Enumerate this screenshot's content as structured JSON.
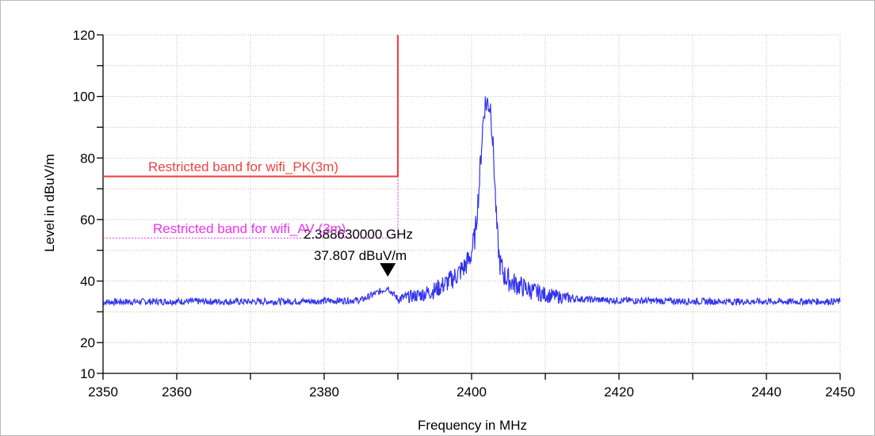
{
  "chart_data": {
    "type": "line",
    "xlabel": "Frequency in MHz",
    "ylabel": "Level in dBuV/m",
    "xlim": [
      2350,
      2450
    ],
    "ylim": [
      10,
      120
    ],
    "x_ticks": [
      2350,
      2360,
      2380,
      2400,
      2420,
      2440,
      2450
    ],
    "x_minor_ticks": [
      2370,
      2390,
      2410,
      2430
    ],
    "y_ticks": [
      10,
      20,
      40,
      60,
      80,
      100,
      120
    ],
    "y_minor_ticks": [
      30,
      50,
      70,
      90,
      110
    ],
    "grid": true,
    "series": [
      {
        "color": "#3333ee",
        "noise_floor": 33.5,
        "points": [
          [
            2350,
            33.2
          ],
          [
            2360,
            33.4
          ],
          [
            2370,
            33.3
          ],
          [
            2380,
            33.5
          ],
          [
            2385,
            33.8
          ],
          [
            2388.63,
            37.8
          ],
          [
            2390,
            34.2
          ],
          [
            2393,
            35.5
          ],
          [
            2395,
            37.0
          ],
          [
            2396,
            38.5
          ],
          [
            2397,
            40.0
          ],
          [
            2398,
            42.0
          ],
          [
            2399,
            44.5
          ],
          [
            2399.8,
            47.5
          ],
          [
            2400.5,
            55.0
          ],
          [
            2401.0,
            70.0
          ],
          [
            2401.5,
            90.0
          ],
          [
            2401.8,
            97.5
          ],
          [
            2402.2,
            98.0
          ],
          [
            2402.6,
            96.5
          ],
          [
            2403.0,
            80.0
          ],
          [
            2403.4,
            58.0
          ],
          [
            2403.8,
            46.0
          ],
          [
            2404.5,
            41.5
          ],
          [
            2405.5,
            39.5
          ],
          [
            2407,
            38.0
          ],
          [
            2408,
            37.0
          ],
          [
            2410,
            35.5
          ],
          [
            2413,
            34.5
          ],
          [
            2416,
            34.0
          ],
          [
            2420,
            33.7
          ],
          [
            2430,
            33.4
          ],
          [
            2440,
            33.3
          ],
          [
            2450,
            33.4
          ]
        ]
      }
    ],
    "limit_lines": [
      {
        "label": "Restricted band for wifi_PK(3m)",
        "color": "#ee4444",
        "style": "solid",
        "level": 74,
        "x_start": 2350,
        "x_end": 2390,
        "vertical_to": 120
      },
      {
        "label": "Restricted band for wifi_AV (3m)",
        "color": "#ee33ee",
        "style": "dotted",
        "level": 54,
        "x_start": 2350,
        "x_end": 2390,
        "vertical_to": 74
      }
    ],
    "marker": {
      "frequency_label": "2.388630000 GHz",
      "level_label": "37.807 dBuV/m",
      "x": 2388.63,
      "y": 37.807
    }
  }
}
